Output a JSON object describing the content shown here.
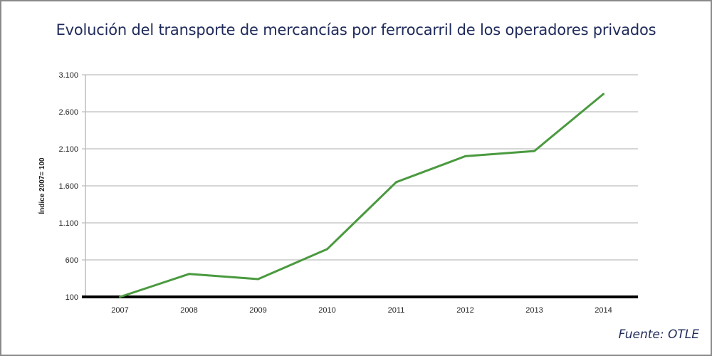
{
  "chart_data": {
    "type": "line",
    "title": "Evolución del transporte de mercancías por ferrocarril de los operadores privados",
    "xlabel": "",
    "ylabel": "Índice 2007= 100",
    "categories": [
      "2007",
      "2008",
      "2009",
      "2010",
      "2011",
      "2012",
      "2013",
      "2014"
    ],
    "series": [
      {
        "name": "Operadores privados",
        "values": [
          100,
          410,
          340,
          745,
          1650,
          2000,
          2070,
          2840
        ],
        "color": "#4a9a3f"
      }
    ],
    "yticks": [
      100,
      600,
      1100,
      1600,
      2100,
      2600,
      3100
    ],
    "ytick_labels": [
      "100",
      "600",
      "1.100",
      "1.600",
      "2.100",
      "2.600",
      "3.100"
    ],
    "ylim": [
      100,
      3100
    ],
    "grid": true,
    "legend": "none",
    "source": "Fuente: OTLE"
  },
  "colors": {
    "title": "#1f2a5a",
    "line": "#4a9a3f",
    "grid": "#bdbdbd",
    "baseline": "#000000"
  }
}
